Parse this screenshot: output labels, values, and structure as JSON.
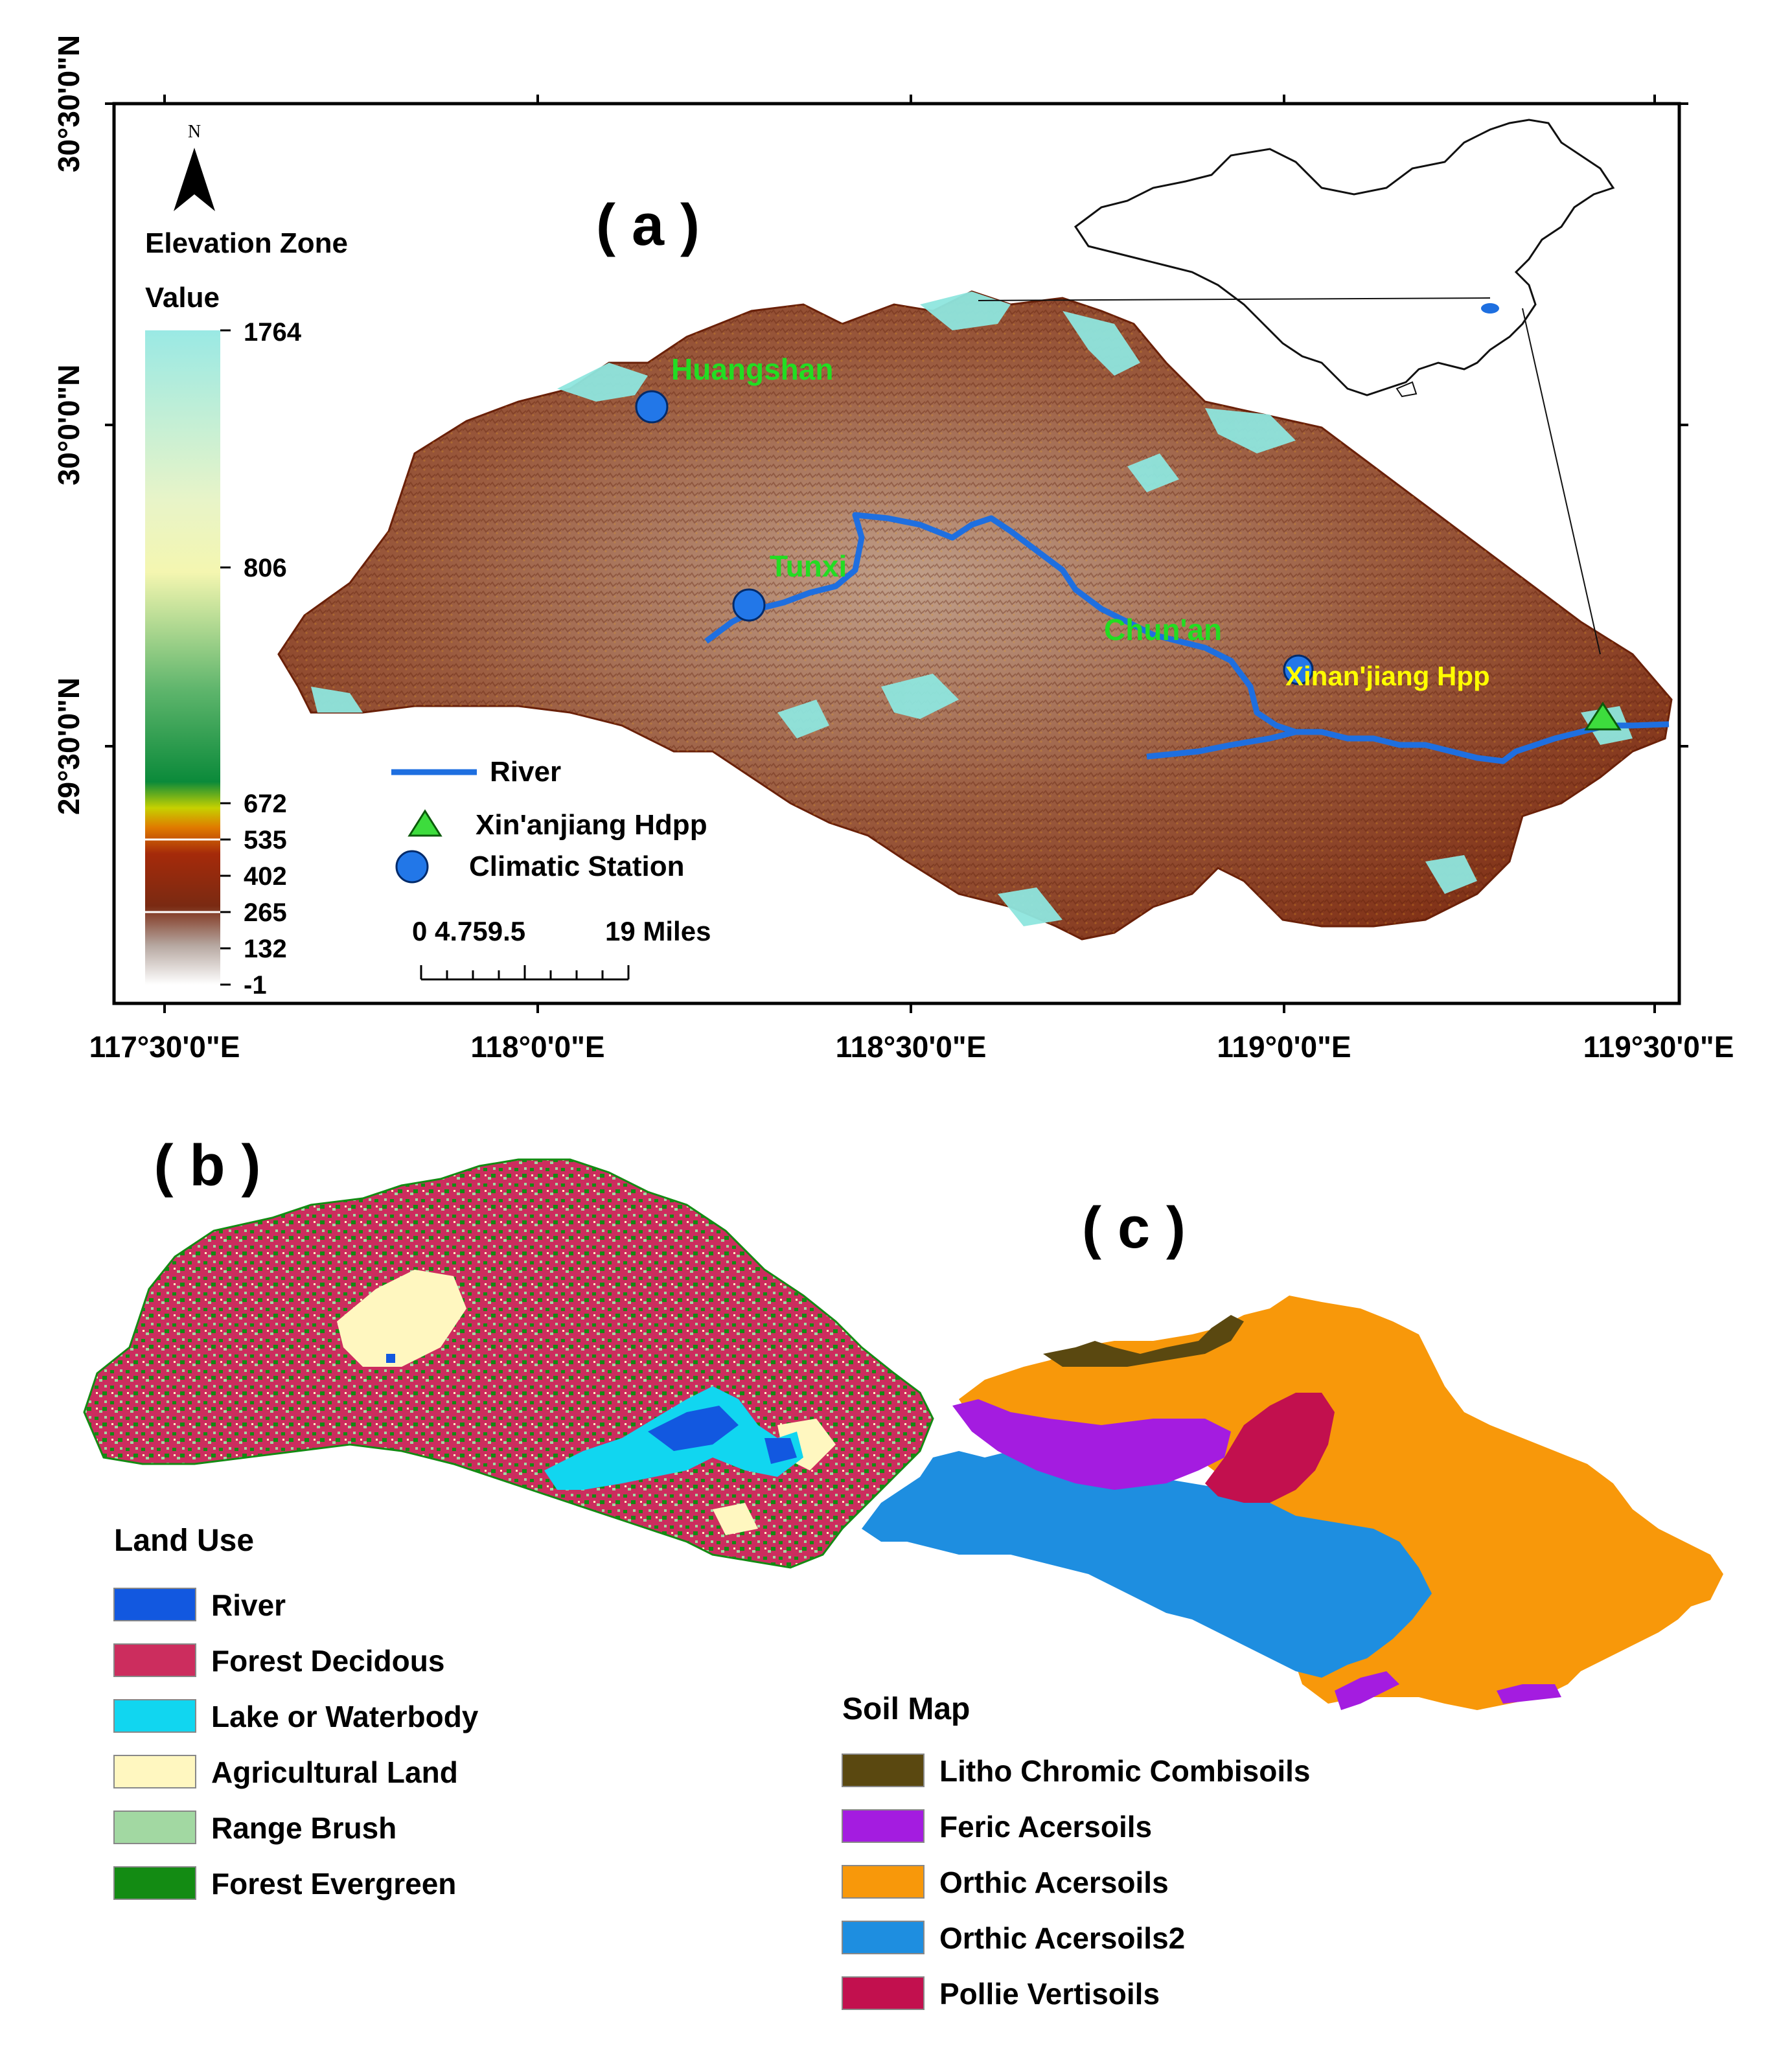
{
  "panel_a": {
    "label": "( a )",
    "north": "N",
    "elevation_title": "Elevation Zone",
    "value_label": "Value",
    "elevation_ticks": [
      "1764",
      "806",
      "672",
      "535",
      "402",
      "265",
      "132",
      "-1"
    ],
    "x_ticks": [
      "117°30'0\"E",
      "118°0'0\"E",
      "118°30'0\"E",
      "119°0'0\"E",
      "119°30'0\"E"
    ],
    "y_ticks": [
      "30°30'0\"N",
      "30°0'0\"N",
      "29°30'0\"N"
    ],
    "stations": {
      "huangshan": "Huangshan",
      "tunxi": "Tunxi",
      "chunan": "Chun'an",
      "xinanjiang": "Xinan'jiang Hpp"
    },
    "legend": {
      "river": "River",
      "hdpp": "Xin'anjiang Hdpp",
      "climatic": "Climatic Station"
    },
    "scale": {
      "ticks": "0 4.759.5",
      "end": "19 Miles"
    },
    "colors": {
      "river": "#1e6fe0",
      "station": "#2277e8",
      "hdpp": "#3ddc3d",
      "station_label": "#22dd22",
      "hpp_label": "#ffff00",
      "terrain": "#8b3a1c",
      "peak": "#8ee6de"
    }
  },
  "panel_b": {
    "label": "( b )",
    "legend_title": "Land Use",
    "items": [
      {
        "label": "River",
        "color": "#1258e0"
      },
      {
        "label": "Forest Decidous",
        "color": "#cc2d5e"
      },
      {
        "label": "Lake or Waterbody",
        "color": "#11d6f0"
      },
      {
        "label": "Agricultural Land",
        "color": "#fff7c0"
      },
      {
        "label": "Range Brush",
        "color": "#a2d8a2"
      },
      {
        "label": "Forest Evergreen",
        "color": "#138b13"
      }
    ]
  },
  "panel_c": {
    "label": "( c )",
    "legend_title": "Soil Map",
    "items": [
      {
        "label": "Litho Chromic Combisoils",
        "color": "#5a4810"
      },
      {
        "label": "Feric Acersoils",
        "color": "#a41ce0"
      },
      {
        "label": "Orthic Acersoils",
        "color": "#f8980a"
      },
      {
        "label": "Orthic Acersoils2",
        "color": "#1e8ee0"
      },
      {
        "label": "Pollie Vertisoils",
        "color": "#c2104e"
      }
    ]
  }
}
